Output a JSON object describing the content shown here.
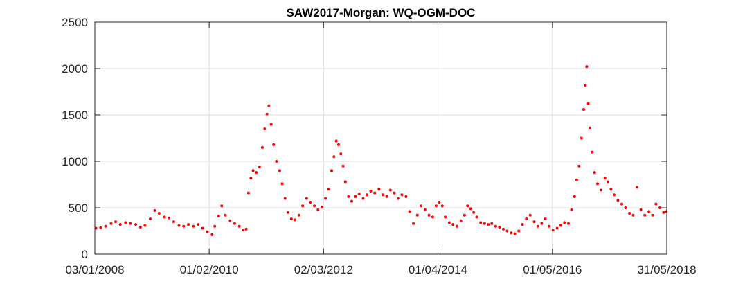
{
  "chart_data": {
    "type": "scatter",
    "title": "SAW2017-Morgan: WQ-OGM-DOC",
    "xlabel": "",
    "ylabel": "",
    "x_type": "date",
    "xlim": [
      "2008-01-03",
      "2018-05-31"
    ],
    "ylim": [
      0,
      2500
    ],
    "x_ticks": [
      {
        "date": "2008-01-03",
        "label": "03/01/2008"
      },
      {
        "date": "2010-02-01",
        "label": "01/02/2010"
      },
      {
        "date": "2012-03-02",
        "label": "02/03/2012"
      },
      {
        "date": "2014-04-01",
        "label": "01/04/2014"
      },
      {
        "date": "2016-05-01",
        "label": "01/05/2016"
      },
      {
        "date": "2018-05-31",
        "label": "31/05/2018"
      }
    ],
    "y_ticks": [
      0,
      500,
      1000,
      1500,
      2000,
      2500
    ],
    "grid": true,
    "marker_color": "#ff0000",
    "series": [
      {
        "points": [
          [
            "2008-01-10",
            280
          ],
          [
            "2008-02-10",
            285
          ],
          [
            "2008-03-15",
            300
          ],
          [
            "2008-04-20",
            330
          ],
          [
            "2008-05-20",
            350
          ],
          [
            "2008-06-20",
            320
          ],
          [
            "2008-07-25",
            340
          ],
          [
            "2008-08-25",
            330
          ],
          [
            "2008-10-01",
            320
          ],
          [
            "2008-11-01",
            290
          ],
          [
            "2008-12-01",
            310
          ],
          [
            "2009-01-05",
            380
          ],
          [
            "2009-02-05",
            470
          ],
          [
            "2009-03-05",
            440
          ],
          [
            "2009-04-10",
            400
          ],
          [
            "2009-05-10",
            390
          ],
          [
            "2009-06-10",
            350
          ],
          [
            "2009-07-15",
            310
          ],
          [
            "2009-08-15",
            300
          ],
          [
            "2009-09-15",
            320
          ],
          [
            "2009-10-20",
            300
          ],
          [
            "2009-11-20",
            320
          ],
          [
            "2009-12-20",
            280
          ],
          [
            "2010-01-20",
            240
          ],
          [
            "2010-02-20",
            210
          ],
          [
            "2010-03-10",
            300
          ],
          [
            "2010-04-05",
            410
          ],
          [
            "2010-04-25",
            520
          ],
          [
            "2010-05-20",
            420
          ],
          [
            "2010-06-20",
            360
          ],
          [
            "2010-07-20",
            330
          ],
          [
            "2010-08-20",
            300
          ],
          [
            "2010-09-15",
            260
          ],
          [
            "2010-10-05",
            270
          ],
          [
            "2010-10-20",
            660
          ],
          [
            "2010-11-05",
            820
          ],
          [
            "2010-11-20",
            900
          ],
          [
            "2010-12-10",
            880
          ],
          [
            "2011-01-01",
            940
          ],
          [
            "2011-01-20",
            1150
          ],
          [
            "2011-02-05",
            1350
          ],
          [
            "2011-02-20",
            1510
          ],
          [
            "2011-03-05",
            1600
          ],
          [
            "2011-03-20",
            1400
          ],
          [
            "2011-04-05",
            1180
          ],
          [
            "2011-04-25",
            1000
          ],
          [
            "2011-05-15",
            900
          ],
          [
            "2011-06-01",
            760
          ],
          [
            "2011-06-20",
            600
          ],
          [
            "2011-07-10",
            450
          ],
          [
            "2011-08-01",
            380
          ],
          [
            "2011-08-25",
            370
          ],
          [
            "2011-09-20",
            420
          ],
          [
            "2011-10-15",
            520
          ],
          [
            "2011-11-10",
            600
          ],
          [
            "2011-12-05",
            560
          ],
          [
            "2012-01-01",
            520
          ],
          [
            "2012-01-25",
            480
          ],
          [
            "2012-02-20",
            510
          ],
          [
            "2012-03-15",
            600
          ],
          [
            "2012-04-05",
            700
          ],
          [
            "2012-04-25",
            900
          ],
          [
            "2012-05-10",
            1050
          ],
          [
            "2012-05-25",
            1220
          ],
          [
            "2012-06-10",
            1180
          ],
          [
            "2012-06-25",
            1080
          ],
          [
            "2012-07-10",
            950
          ],
          [
            "2012-07-25",
            780
          ],
          [
            "2012-08-15",
            620
          ],
          [
            "2012-09-05",
            570
          ],
          [
            "2012-10-01",
            620
          ],
          [
            "2012-10-25",
            650
          ],
          [
            "2012-11-20",
            600
          ],
          [
            "2012-12-15",
            640
          ],
          [
            "2013-01-10",
            680
          ],
          [
            "2013-02-05",
            660
          ],
          [
            "2013-03-05",
            700
          ],
          [
            "2013-04-01",
            640
          ],
          [
            "2013-04-25",
            620
          ],
          [
            "2013-05-20",
            690
          ],
          [
            "2013-06-15",
            660
          ],
          [
            "2013-07-10",
            600
          ],
          [
            "2013-08-05",
            640
          ],
          [
            "2013-09-01",
            620
          ],
          [
            "2013-09-25",
            460
          ],
          [
            "2013-10-20",
            330
          ],
          [
            "2013-11-15",
            420
          ],
          [
            "2013-12-10",
            520
          ],
          [
            "2014-01-05",
            480
          ],
          [
            "2014-02-01",
            420
          ],
          [
            "2014-02-25",
            400
          ],
          [
            "2014-03-20",
            520
          ],
          [
            "2014-04-10",
            560
          ],
          [
            "2014-04-30",
            520
          ],
          [
            "2014-05-20",
            400
          ],
          [
            "2014-06-15",
            340
          ],
          [
            "2014-07-10",
            320
          ],
          [
            "2014-08-05",
            300
          ],
          [
            "2014-09-01",
            360
          ],
          [
            "2014-09-25",
            420
          ],
          [
            "2014-10-15",
            520
          ],
          [
            "2014-11-05",
            490
          ],
          [
            "2014-11-25",
            450
          ],
          [
            "2014-12-15",
            400
          ],
          [
            "2015-01-10",
            340
          ],
          [
            "2015-02-05",
            330
          ],
          [
            "2015-03-01",
            320
          ],
          [
            "2015-03-25",
            330
          ],
          [
            "2015-04-20",
            300
          ],
          [
            "2015-05-15",
            290
          ],
          [
            "2015-06-10",
            270
          ],
          [
            "2015-07-05",
            250
          ],
          [
            "2015-08-01",
            230
          ],
          [
            "2015-08-25",
            220
          ],
          [
            "2015-09-20",
            250
          ],
          [
            "2015-10-15",
            320
          ],
          [
            "2015-11-10",
            380
          ],
          [
            "2015-12-05",
            420
          ],
          [
            "2016-01-01",
            350
          ],
          [
            "2016-01-25",
            300
          ],
          [
            "2016-02-20",
            330
          ],
          [
            "2016-03-15",
            380
          ],
          [
            "2016-04-10",
            300
          ],
          [
            "2016-05-05",
            260
          ],
          [
            "2016-06-01",
            280
          ],
          [
            "2016-06-25",
            310
          ],
          [
            "2016-07-20",
            340
          ],
          [
            "2016-08-15",
            330
          ],
          [
            "2016-09-05",
            480
          ],
          [
            "2016-09-25",
            620
          ],
          [
            "2016-10-10",
            800
          ],
          [
            "2016-10-25",
            950
          ],
          [
            "2016-11-10",
            1250
          ],
          [
            "2016-11-25",
            1560
          ],
          [
            "2016-12-05",
            1820
          ],
          [
            "2016-12-15",
            2020
          ],
          [
            "2016-12-25",
            1620
          ],
          [
            "2017-01-05",
            1360
          ],
          [
            "2017-01-20",
            1100
          ],
          [
            "2017-02-05",
            880
          ],
          [
            "2017-02-25",
            760
          ],
          [
            "2017-03-20",
            690
          ],
          [
            "2017-04-15",
            820
          ],
          [
            "2017-05-05",
            780
          ],
          [
            "2017-05-25",
            700
          ],
          [
            "2017-06-15",
            640
          ],
          [
            "2017-07-10",
            580
          ],
          [
            "2017-08-05",
            540
          ],
          [
            "2017-08-30",
            500
          ],
          [
            "2017-09-25",
            440
          ],
          [
            "2017-10-20",
            420
          ],
          [
            "2017-11-15",
            720
          ],
          [
            "2017-12-10",
            480
          ],
          [
            "2018-01-05",
            420
          ],
          [
            "2018-02-01",
            460
          ],
          [
            "2018-02-25",
            420
          ],
          [
            "2018-03-20",
            540
          ],
          [
            "2018-04-15",
            500
          ],
          [
            "2018-05-10",
            450
          ],
          [
            "2018-05-28",
            460
          ]
        ]
      }
    ]
  }
}
